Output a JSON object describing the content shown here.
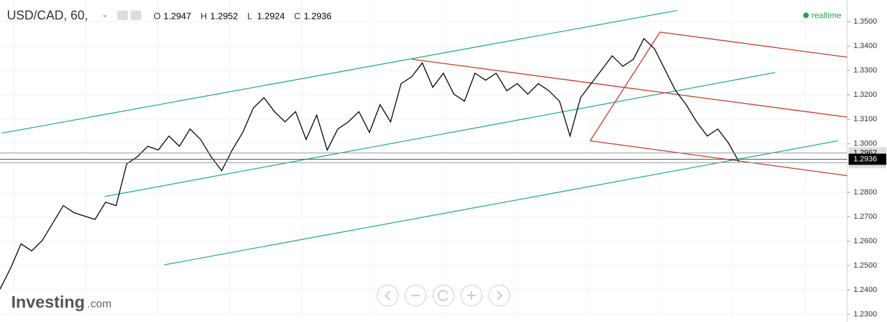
{
  "chart_data": {
    "type": "line",
    "title": "USD/CAD, 60,",
    "ohlc": [
      {
        "name": "O",
        "value": 1.2947
      },
      {
        "name": "H",
        "value": 1.2952
      },
      {
        "name": "L",
        "value": 1.2924
      },
      {
        "name": "C",
        "value": 1.2936
      }
    ],
    "status": "realtime",
    "logo": "Investing",
    "logo_suffix": ".com",
    "color": "#000000",
    "values": [
      1.2403,
      1.2489,
      1.2589,
      1.256,
      1.2603,
      1.2674,
      1.2746,
      1.2717,
      1.2703,
      1.2689,
      1.276,
      1.2746,
      1.2917,
      1.2946,
      1.2989,
      1.2974,
      1.3031,
      1.2989,
      1.306,
      1.3017,
      1.2946,
      1.2889,
      1.2974,
      1.3046,
      1.3146,
      1.3189,
      1.3131,
      1.3089,
      1.3131,
      1.3017,
      1.3117,
      1.2974,
      1.306,
      1.3089,
      1.3131,
      1.3046,
      1.316,
      1.3089,
      1.3246,
      1.3274,
      1.3331,
      1.3231,
      1.3289,
      1.3203,
      1.3174,
      1.3289,
      1.326,
      1.3289,
      1.3217,
      1.3246,
      1.3203,
      1.3246,
      1.3217,
      1.3174,
      1.3031,
      1.3189,
      1.3246,
      1.3303,
      1.336,
      1.3317,
      1.3346,
      1.3431,
      1.3389,
      1.3303,
      1.3217,
      1.316,
      1.3089,
      1.3031,
      1.306,
      1.3003,
      1.2926
    ],
    "ylim": [
      1.228,
      1.3589
    ],
    "yticks": [
      {
        "value": 1.23,
        "label": "1.2300"
      },
      {
        "value": 1.24,
        "label": "1.2400"
      },
      {
        "value": 1.25,
        "label": "1.2500"
      },
      {
        "value": 1.26,
        "label": "1.2600"
      },
      {
        "value": 1.27,
        "label": "1.2700"
      },
      {
        "value": 1.28,
        "label": "1.2800"
      },
      {
        "value": 1.3,
        "label": "1.3000"
      },
      {
        "value": 1.31,
        "label": "1.3100"
      },
      {
        "value": 1.32,
        "label": "1.3200"
      },
      {
        "value": 1.33,
        "label": "1.3300"
      },
      {
        "value": 1.34,
        "label": "1.3400"
      },
      {
        "value": 1.35,
        "label": "1.3500"
      }
    ],
    "price_lines": [
      1.2962,
      1.2922
    ],
    "last_price": 1.2936,
    "grid": true
  }
}
